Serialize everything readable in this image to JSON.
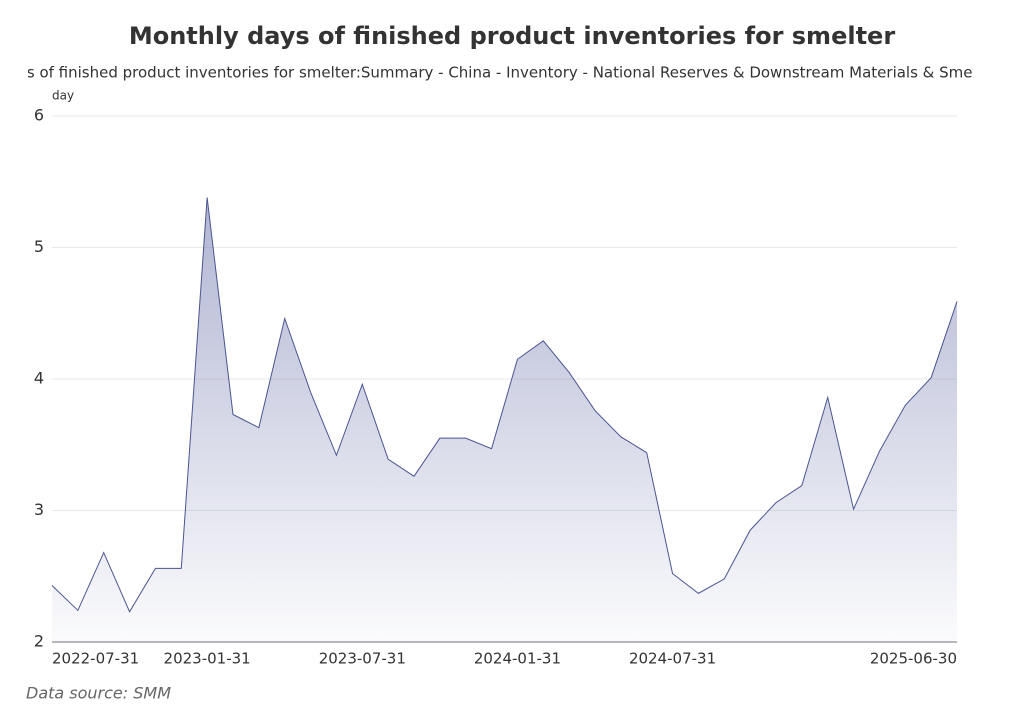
{
  "chart_data": {
    "type": "area",
    "title": "Monthly days of finished product inventories for smelter",
    "subtitle": "ys of finished product inventories for smelter:Summary - China - Inventory - National Reserves & Downstream Materials & Sme",
    "y_unit": "day",
    "source": "Data source:  SMM",
    "categories": [
      "2022-07-31",
      null,
      null,
      null,
      null,
      null,
      "2023-01-31",
      null,
      null,
      null,
      null,
      null,
      "2023-07-31",
      null,
      null,
      null,
      null,
      null,
      "2024-01-31",
      null,
      null,
      null,
      null,
      null,
      "2024-07-31",
      null,
      null,
      null,
      null,
      null,
      null,
      null,
      null,
      null,
      null,
      "2025-06-30"
    ],
    "series": [
      {
        "name": "Monthly days of finished product inventories for smelter",
        "color": "#4a5490",
        "values": [
          2.43,
          2.24,
          2.68,
          2.23,
          2.56,
          2.56,
          5.38,
          3.73,
          3.63,
          4.46,
          3.9,
          3.42,
          3.96,
          3.39,
          3.26,
          3.55,
          3.55,
          3.47,
          4.15,
          4.29,
          4.05,
          3.76,
          3.56,
          3.44,
          2.52,
          2.37,
          2.48,
          2.85,
          3.06,
          3.19,
          3.86,
          3.01,
          3.45,
          3.8,
          4.01,
          4.59
        ]
      }
    ],
    "ylim": [
      2,
      6
    ],
    "yticks": [
      2,
      3,
      4,
      5,
      6
    ],
    "grid": true
  }
}
